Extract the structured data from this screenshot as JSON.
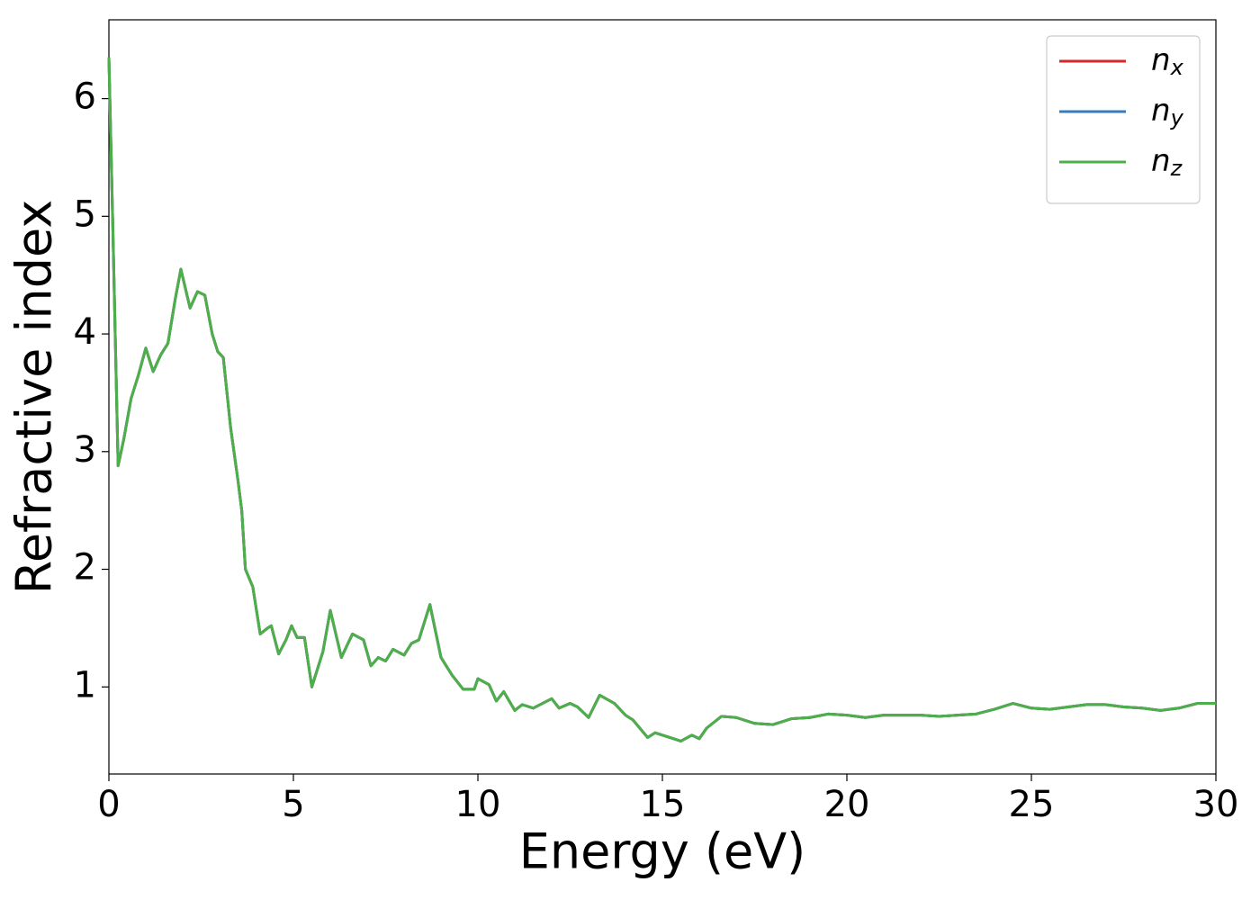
{
  "chart_data": {
    "type": "line",
    "xlabel": "Energy (eV)",
    "ylabel": "Refractive index",
    "x": [
      0,
      0.1,
      0.25,
      0.4,
      0.6,
      0.8,
      1.0,
      1.2,
      1.4,
      1.6,
      1.8,
      1.95,
      2.2,
      2.4,
      2.6,
      2.8,
      2.95,
      3.1,
      3.3,
      3.5,
      3.6,
      3.7,
      3.9,
      4.1,
      4.3,
      4.4,
      4.6,
      4.8,
      4.95,
      5.1,
      5.3,
      5.5,
      5.8,
      6.0,
      6.3,
      6.6,
      6.9,
      7.1,
      7.3,
      7.5,
      7.7,
      8.0,
      8.2,
      8.4,
      8.7,
      9.0,
      9.3,
      9.6,
      9.9,
      10.0,
      10.3,
      10.5,
      10.7,
      11.0,
      11.2,
      11.5,
      12.0,
      12.2,
      12.5,
      12.7,
      13.0,
      13.3,
      13.7,
      14.0,
      14.2,
      14.6,
      14.8,
      15.2,
      15.5,
      15.8,
      16.0,
      16.2,
      16.6,
      17.0,
      17.5,
      18.0,
      18.5,
      19.0,
      19.5,
      20.0,
      20.5,
      21.0,
      21.5,
      22.0,
      22.5,
      23.0,
      23.5,
      24.0,
      24.5,
      25.0,
      25.5,
      26.0,
      26.5,
      27.0,
      27.5,
      28.0,
      28.5,
      29.0,
      29.5,
      30.0
    ],
    "series": [
      {
        "name": "nx",
        "color": "#d62728",
        "values": [
          6.35,
          5.0,
          2.88,
          3.1,
          3.45,
          3.65,
          3.88,
          3.68,
          3.82,
          3.92,
          4.3,
          4.55,
          4.22,
          4.36,
          4.33,
          4.0,
          3.85,
          3.8,
          3.2,
          2.75,
          2.5,
          2.0,
          1.85,
          1.45,
          1.5,
          1.52,
          1.28,
          1.4,
          1.52,
          1.42,
          1.42,
          1.0,
          1.3,
          1.65,
          1.25,
          1.45,
          1.4,
          1.18,
          1.25,
          1.22,
          1.32,
          1.27,
          1.37,
          1.4,
          1.7,
          1.25,
          1.1,
          0.98,
          0.98,
          1.07,
          1.02,
          0.88,
          0.96,
          0.8,
          0.85,
          0.82,
          0.9,
          0.82,
          0.86,
          0.83,
          0.74,
          0.93,
          0.86,
          0.76,
          0.72,
          0.57,
          0.61,
          0.57,
          0.54,
          0.59,
          0.56,
          0.65,
          0.75,
          0.74,
          0.69,
          0.68,
          0.73,
          0.74,
          0.77,
          0.76,
          0.74,
          0.76,
          0.76,
          0.76,
          0.75,
          0.76,
          0.77,
          0.81,
          0.86,
          0.82,
          0.81,
          0.83,
          0.85,
          0.85,
          0.83,
          0.82,
          0.8,
          0.82,
          0.86,
          0.86
        ]
      },
      {
        "name": "ny",
        "color": "#377eb8",
        "values": [
          6.35,
          5.0,
          2.88,
          3.1,
          3.45,
          3.65,
          3.88,
          3.68,
          3.82,
          3.92,
          4.3,
          4.55,
          4.22,
          4.36,
          4.33,
          4.0,
          3.85,
          3.8,
          3.2,
          2.75,
          2.5,
          2.0,
          1.85,
          1.45,
          1.5,
          1.52,
          1.28,
          1.4,
          1.52,
          1.42,
          1.42,
          1.0,
          1.3,
          1.65,
          1.25,
          1.45,
          1.4,
          1.18,
          1.25,
          1.22,
          1.32,
          1.27,
          1.37,
          1.4,
          1.7,
          1.25,
          1.1,
          0.98,
          0.98,
          1.07,
          1.02,
          0.88,
          0.96,
          0.8,
          0.85,
          0.82,
          0.9,
          0.82,
          0.86,
          0.83,
          0.74,
          0.93,
          0.86,
          0.76,
          0.72,
          0.57,
          0.61,
          0.57,
          0.54,
          0.59,
          0.56,
          0.65,
          0.75,
          0.74,
          0.69,
          0.68,
          0.73,
          0.74,
          0.77,
          0.76,
          0.74,
          0.76,
          0.76,
          0.76,
          0.75,
          0.76,
          0.77,
          0.81,
          0.86,
          0.82,
          0.81,
          0.83,
          0.85,
          0.85,
          0.83,
          0.82,
          0.8,
          0.82,
          0.86,
          0.86
        ]
      },
      {
        "name": "nz",
        "color": "#4daf4a",
        "values": [
          6.35,
          5.0,
          2.88,
          3.1,
          3.45,
          3.65,
          3.88,
          3.68,
          3.82,
          3.92,
          4.3,
          4.55,
          4.22,
          4.36,
          4.33,
          4.0,
          3.85,
          3.8,
          3.2,
          2.75,
          2.5,
          2.0,
          1.85,
          1.45,
          1.5,
          1.52,
          1.28,
          1.4,
          1.52,
          1.42,
          1.42,
          1.0,
          1.3,
          1.65,
          1.25,
          1.45,
          1.4,
          1.18,
          1.25,
          1.22,
          1.32,
          1.27,
          1.37,
          1.4,
          1.7,
          1.25,
          1.1,
          0.98,
          0.98,
          1.07,
          1.02,
          0.88,
          0.96,
          0.8,
          0.85,
          0.82,
          0.9,
          0.82,
          0.86,
          0.83,
          0.74,
          0.93,
          0.86,
          0.76,
          0.72,
          0.57,
          0.61,
          0.57,
          0.54,
          0.59,
          0.56,
          0.65,
          0.75,
          0.74,
          0.69,
          0.68,
          0.73,
          0.74,
          0.77,
          0.76,
          0.74,
          0.76,
          0.76,
          0.76,
          0.75,
          0.76,
          0.77,
          0.81,
          0.86,
          0.82,
          0.81,
          0.83,
          0.85,
          0.85,
          0.83,
          0.82,
          0.8,
          0.82,
          0.86,
          0.86
        ]
      }
    ],
    "xlim": [
      0,
      30
    ],
    "xticks": [
      0,
      5,
      10,
      15,
      20,
      25,
      30
    ],
    "ylim": [
      0.26,
      6.67
    ],
    "yticks": [
      1,
      2,
      3,
      4,
      5,
      6
    ],
    "grid": false,
    "legend": "upper right"
  }
}
